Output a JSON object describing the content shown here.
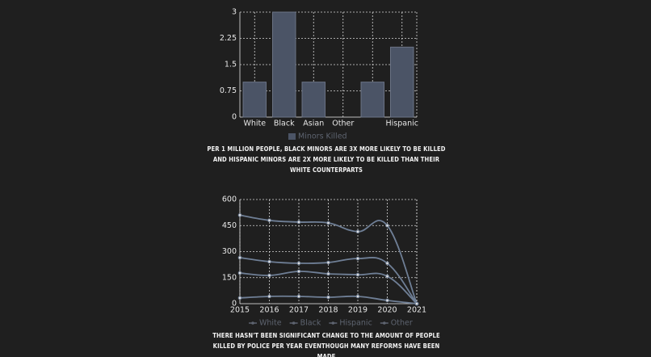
{
  "chart_data": [
    {
      "type": "bar",
      "categories": [
        "White",
        "Black",
        "Asian",
        "Other",
        null,
        "Hispanic"
      ],
      "series": [
        {
          "name": "Minors Killed",
          "color": "#4b5466",
          "values": [
            1,
            3,
            1,
            0,
            1,
            2
          ]
        }
      ],
      "ylim": [
        0,
        3
      ],
      "yticks": [
        0,
        0.75,
        1.5,
        2.25,
        3
      ],
      "grid": true,
      "caption": "PER 1 MILLION PEOPLE, BLACK MINORS ARE 3X MORE LIKELY TO BE KILLED AND HISPANIC MINORS ARE 2X MORE LIKELY TO BE KILLED THAN THEIR WHITE COUNTERPARTS"
    },
    {
      "type": "line",
      "x": [
        2015,
        2016,
        2017,
        2018,
        2019,
        2020,
        2021
      ],
      "xlim": [
        2015,
        2021
      ],
      "xticks": [
        2015,
        2016,
        2017,
        2018,
        2019,
        2020,
        2021
      ],
      "series": [
        {
          "name": "White",
          "color": "#6f7f96",
          "values": [
            510,
            480,
            470,
            465,
            415,
            450,
            0
          ]
        },
        {
          "name": "Black",
          "color": "#6f7f96",
          "values": [
            265,
            242,
            233,
            237,
            260,
            233,
            0
          ]
        },
        {
          "name": "Hispanic",
          "color": "#6f7f96",
          "values": [
            177,
            163,
            186,
            172,
            167,
            158,
            0
          ]
        },
        {
          "name": "Other",
          "color": "#6f7f96",
          "values": [
            33,
            42,
            42,
            37,
            42,
            19,
            0
          ]
        }
      ],
      "ylim": [
        0,
        600
      ],
      "yticks": [
        0,
        150,
        300,
        450,
        600
      ],
      "grid": true,
      "caption": "THERE HASN'T BEEN SIGNIFICANT CHANGE TO THE AMOUNT OF PEOPLE KILLED BY POLICE PER YEAR EVENTHOUGH MANY REFORMS HAVE BEEN MADE"
    }
  ]
}
